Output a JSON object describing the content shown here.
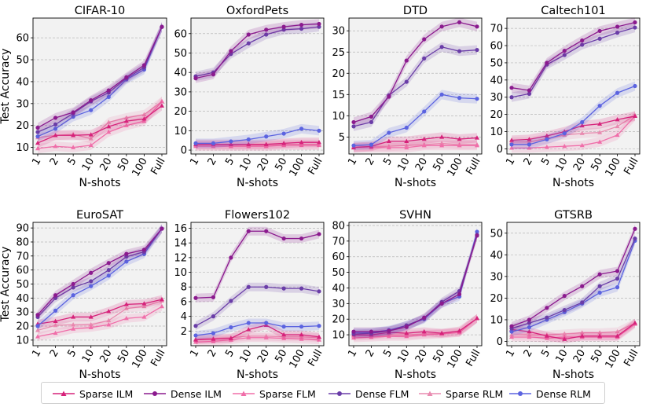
{
  "chart_data": [
    {
      "type": "line",
      "title": "CIFAR-10",
      "ylabel": "Test Accuracy",
      "xlabel": "N-shots",
      "ylim": [
        7,
        69
      ],
      "yticks": [
        10,
        20,
        30,
        40,
        50,
        60
      ],
      "categories": [
        "1",
        "2",
        "5",
        "10",
        "20",
        "50",
        "100",
        "Full"
      ],
      "series": [
        {
          "name": "Sparse ILM",
          "values": [
            12,
            15.5,
            15.5,
            15.8,
            19.5,
            22,
            23,
            29
          ]
        },
        {
          "name": "Dense ILM",
          "values": [
            19,
            23.5,
            26,
            31.5,
            36,
            42,
            47.5,
            65
          ]
        },
        {
          "name": "Sparse FLM",
          "values": [
            9.5,
            10.5,
            10,
            11,
            17,
            20,
            22,
            31
          ]
        },
        {
          "name": "Dense FLM",
          "values": [
            17,
            20.5,
            25.5,
            31,
            35,
            41.5,
            46.5,
            65
          ]
        },
        {
          "name": "Sparse RLM",
          "values": [
            14.5,
            15.5,
            16,
            14,
            21.5,
            23.5,
            25,
            31
          ]
        },
        {
          "name": "Dense RLM",
          "values": [
            15,
            18.5,
            24,
            27,
            33,
            41,
            45.5,
            65
          ]
        }
      ]
    },
    {
      "type": "line",
      "title": "OxfordPets",
      "xlabel": "N-shots",
      "ylim": [
        -2,
        68
      ],
      "yticks": [
        0,
        10,
        20,
        30,
        40,
        50,
        60
      ],
      "categories": [
        "1",
        "2",
        "5",
        "10",
        "20",
        "50",
        "100",
        "Full"
      ],
      "series": [
        {
          "name": "Sparse ILM",
          "values": [
            3,
            3,
            3,
            3,
            3,
            3.5,
            4,
            4
          ]
        },
        {
          "name": "Dense ILM",
          "values": [
            37,
            39,
            51,
            59.5,
            62,
            63.5,
            64.5,
            65
          ]
        },
        {
          "name": "Sparse FLM",
          "values": [
            2,
            2,
            2,
            2,
            2,
            2.5,
            2.5,
            2.5
          ]
        },
        {
          "name": "Dense FLM",
          "values": [
            38,
            40,
            49.5,
            55,
            59.5,
            62,
            62.5,
            63.5
          ]
        },
        {
          "name": "Sparse RLM",
          "values": [
            2.5,
            2.5,
            2.5,
            2.5,
            2.5,
            3,
            3,
            3
          ]
        },
        {
          "name": "Dense RLM",
          "values": [
            3.5,
            3.5,
            4.5,
            5.5,
            7,
            8.5,
            11,
            10
          ]
        }
      ]
    },
    {
      "type": "line",
      "title": "DTD",
      "xlabel": "N-shots",
      "ylim": [
        1,
        33
      ],
      "yticks": [
        5,
        10,
        15,
        20,
        25,
        30
      ],
      "categories": [
        "1",
        "2",
        "5",
        "10",
        "20",
        "50",
        "100",
        "Full"
      ],
      "series": [
        {
          "name": "Sparse ILM",
          "values": [
            2.5,
            2.8,
            4,
            4,
            4.5,
            5,
            4.5,
            4.8
          ]
        },
        {
          "name": "Dense ILM",
          "values": [
            8.5,
            9.8,
            14.5,
            23,
            28,
            31,
            32,
            31
          ]
        },
        {
          "name": "Sparse FLM",
          "values": [
            2.5,
            2.5,
            2.5,
            2.5,
            3,
            3,
            3,
            3
          ]
        },
        {
          "name": "Dense FLM",
          "values": [
            7.5,
            8.5,
            14.8,
            18,
            23.5,
            26.2,
            25.2,
            25.5
          ]
        },
        {
          "name": "Sparse RLM",
          "values": [
            2.8,
            2.8,
            2.8,
            3,
            3.2,
            3.5,
            3.2,
            3.2
          ]
        },
        {
          "name": "Dense RLM",
          "values": [
            3,
            3.2,
            6,
            7.2,
            11,
            15,
            14.2,
            14
          ]
        }
      ]
    },
    {
      "type": "line",
      "title": "Caltech101",
      "xlabel": "N-shots",
      "ylim": [
        -3,
        76
      ],
      "yticks": [
        0,
        10,
        20,
        30,
        40,
        50,
        60,
        70
      ],
      "categories": [
        "1",
        "2",
        "5",
        "10",
        "20",
        "50",
        "100",
        "Full"
      ],
      "series": [
        {
          "name": "Sparse ILM",
          "values": [
            5,
            5.5,
            7.5,
            10,
            13.5,
            14.5,
            17,
            19
          ]
        },
        {
          "name": "Dense ILM",
          "values": [
            35.5,
            34,
            50,
            57,
            63,
            68.5,
            71,
            73.5
          ]
        },
        {
          "name": "Sparse FLM",
          "values": [
            0.5,
            0.5,
            1,
            1.5,
            2,
            4,
            8,
            19
          ]
        },
        {
          "name": "Dense FLM",
          "values": [
            30,
            32,
            49,
            54.5,
            60.5,
            64,
            67.5,
            70.5
          ]
        },
        {
          "name": "Sparse RLM",
          "values": [
            4,
            4,
            6,
            8,
            9,
            9.5,
            13,
            19.5
          ]
        },
        {
          "name": "Dense RLM",
          "values": [
            2.5,
            2.5,
            5.5,
            9,
            15.5,
            25,
            32.5,
            36.5
          ]
        }
      ]
    },
    {
      "type": "line",
      "title": "EuroSAT",
      "ylabel": "Test Accuracy",
      "xlabel": "N-shots",
      "ylim": [
        6,
        94
      ],
      "yticks": [
        10,
        20,
        30,
        40,
        50,
        60,
        70,
        80,
        90
      ],
      "categories": [
        "1",
        "2",
        "5",
        "10",
        "20",
        "50",
        "100",
        "Full"
      ],
      "series": [
        {
          "name": "Sparse ILM",
          "values": [
            21.5,
            23.5,
            26.5,
            26.5,
            30.5,
            35.5,
            36,
            39
          ]
        },
        {
          "name": "Dense ILM",
          "values": [
            28,
            42,
            50,
            58,
            65,
            71.5,
            74.5,
            89.5
          ]
        },
        {
          "name": "Sparse FLM",
          "values": [
            12.5,
            15,
            18,
            19,
            21,
            25.5,
            26.5,
            34
          ]
        },
        {
          "name": "Dense FLM",
          "values": [
            26.5,
            40,
            47.5,
            52,
            60,
            69.5,
            73,
            89.5
          ]
        },
        {
          "name": "Sparse RLM",
          "values": [
            17,
            20.5,
            21,
            21,
            24,
            32.5,
            34,
            38
          ]
        },
        {
          "name": "Dense RLM",
          "values": [
            20,
            31,
            42,
            48.5,
            56,
            66,
            71.5,
            89.5
          ]
        }
      ]
    },
    {
      "type": "line",
      "title": "Flowers102",
      "xlabel": "N-shots",
      "ylim": [
        0,
        16.8
      ],
      "yticks": [
        2,
        4,
        6,
        8,
        10,
        12,
        14,
        16
      ],
      "categories": [
        "1",
        "2",
        "5",
        "10",
        "20",
        "50",
        "100",
        "Full"
      ],
      "series": [
        {
          "name": "Sparse ILM",
          "values": [
            0.8,
            0.9,
            1,
            2.2,
            2.8,
            1.5,
            1.5,
            1.2
          ]
        },
        {
          "name": "Dense ILM",
          "values": [
            6.5,
            6.6,
            12,
            15.6,
            15.6,
            14.6,
            14.6,
            15.2
          ]
        },
        {
          "name": "Sparse FLM",
          "values": [
            0.5,
            0.6,
            0.8,
            1.1,
            1.1,
            1,
            0.9,
            0.8
          ]
        },
        {
          "name": "Dense FLM",
          "values": [
            2.7,
            4,
            6.1,
            8,
            8,
            7.8,
            7.8,
            7.4
          ]
        },
        {
          "name": "Sparse RLM",
          "values": [
            0.9,
            1,
            1.1,
            1.3,
            1.3,
            1.2,
            1.2,
            1.1
          ]
        },
        {
          "name": "Dense RLM",
          "values": [
            1.4,
            1.7,
            2.5,
            3.1,
            3.1,
            2.6,
            2.6,
            2.7
          ]
        }
      ]
    },
    {
      "type": "line",
      "title": "SVHN",
      "xlabel": "N-shots",
      "ylim": [
        3,
        82
      ],
      "yticks": [
        10,
        20,
        30,
        40,
        50,
        60,
        70,
        80
      ],
      "categories": [
        "1",
        "2",
        "5",
        "10",
        "20",
        "50",
        "100",
        "Full"
      ],
      "series": [
        {
          "name": "Sparse ILM",
          "values": [
            10,
            10,
            11.5,
            11,
            12,
            11,
            12.5,
            20.5
          ]
        },
        {
          "name": "Dense ILM",
          "values": [
            12,
            12,
            12.5,
            15,
            21,
            30,
            36,
            73.5
          ]
        },
        {
          "name": "Sparse FLM",
          "values": [
            8,
            8.5,
            9,
            9,
            10,
            10.5,
            11.5,
            20.5
          ]
        },
        {
          "name": "Dense FLM",
          "values": [
            10.5,
            11,
            12.5,
            16,
            20.5,
            31,
            38,
            74
          ]
        },
        {
          "name": "Sparse RLM",
          "values": [
            9,
            9.5,
            10,
            10,
            10.5,
            11,
            11.5,
            20.5
          ]
        },
        {
          "name": "Dense RLM",
          "values": [
            11.5,
            11.5,
            13,
            16,
            20,
            30,
            34.5,
            76
          ]
        }
      ]
    },
    {
      "type": "line",
      "title": "GTSRB",
      "xlabel": "N-shots",
      "ylim": [
        -2,
        55
      ],
      "yticks": [
        0,
        10,
        20,
        30,
        40,
        50
      ],
      "categories": [
        "1",
        "2",
        "5",
        "10",
        "20",
        "50",
        "100",
        "Full"
      ],
      "series": [
        {
          "name": "Sparse ILM",
          "values": [
            5.5,
            4.5,
            2.5,
            1,
            2.5,
            2.5,
            2.5,
            8.5
          ]
        },
        {
          "name": "Dense ILM",
          "values": [
            7,
            10,
            15.5,
            21,
            25.5,
            31,
            32.5,
            52
          ]
        },
        {
          "name": "Sparse FLM",
          "values": [
            2,
            2,
            1.5,
            2,
            2,
            2,
            2,
            8
          ]
        },
        {
          "name": "Dense FLM",
          "values": [
            6,
            8.5,
            11,
            14.5,
            18,
            25.5,
            29,
            47.5
          ]
        },
        {
          "name": "Sparse RLM",
          "values": [
            3,
            3,
            3,
            3.5,
            4,
            4,
            4.5,
            8.5
          ]
        },
        {
          "name": "Dense RLM",
          "values": [
            4.5,
            6.5,
            10,
            13.5,
            17.5,
            22.5,
            25,
            46.5
          ]
        }
      ]
    }
  ],
  "legend": [
    {
      "name": "Sparse ILM",
      "label": "Sparse ILM",
      "color": "#d6227a",
      "marker": "triangle"
    },
    {
      "name": "Dense ILM",
      "label": "Dense ILM",
      "color": "#8b1a8e",
      "marker": "circle"
    },
    {
      "name": "Sparse FLM",
      "label": "Sparse FLM",
      "color": "#f06ea9",
      "marker": "triangle"
    },
    {
      "name": "Dense FLM",
      "label": "Dense FLM",
      "color": "#6a3da8",
      "marker": "circle"
    },
    {
      "name": "Sparse RLM",
      "label": "Sparse RLM",
      "color": "#e88bb0",
      "marker": "triangle"
    },
    {
      "name": "Dense RLM",
      "label": "Dense RLM",
      "color": "#5b63e0",
      "marker": "circle"
    }
  ]
}
